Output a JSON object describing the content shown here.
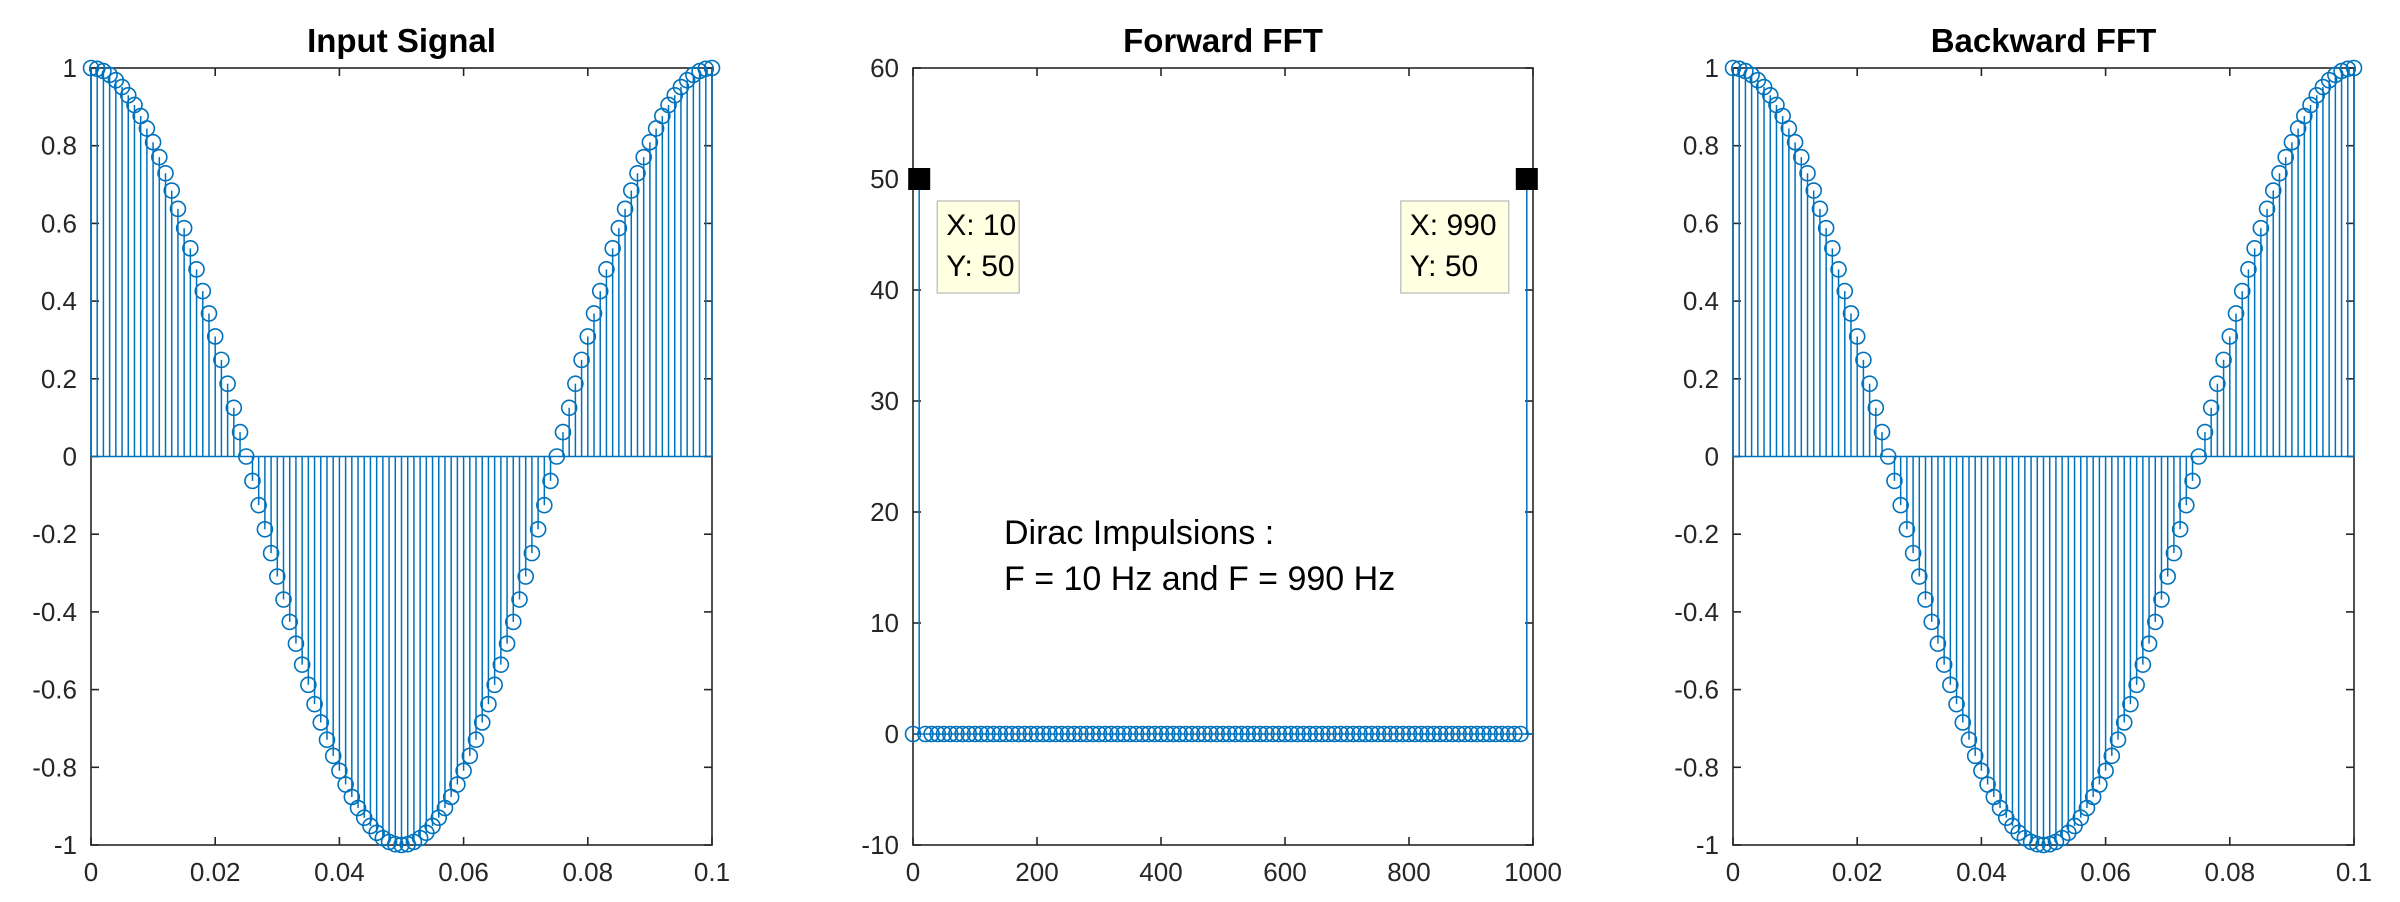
{
  "figure": {
    "annotation": {
      "line1": "Dirac Impulsions :",
      "line2": "F = 10 Hz and F = 990 Hz"
    }
  },
  "colors": {
    "series": "#0072BD",
    "axis": "#262626",
    "tip_background": "#FFFFE1",
    "tip_border": "#B7B7B7"
  },
  "chart_data": [
    {
      "type": "stem",
      "title": "Input Signal",
      "xlabel": "",
      "ylabel": "",
      "xlim": [
        0,
        0.1
      ],
      "ylim": [
        -1,
        1
      ],
      "xticks": [
        0,
        0.02,
        0.04,
        0.06,
        0.08,
        0.1
      ],
      "xtick_labels": [
        "0",
        "0.02",
        "0.04",
        "0.06",
        "0.08",
        "0.1"
      ],
      "yticks": [
        -1,
        -0.8,
        -0.6,
        -0.4,
        -0.2,
        0,
        0.2,
        0.4,
        0.6,
        0.8,
        1
      ],
      "ytick_labels": [
        "-1",
        "-0.8",
        "-0.6",
        "-0.4",
        "-0.2",
        "0",
        "0.2",
        "0.4",
        "0.6",
        "0.8",
        "1"
      ],
      "grid": false,
      "series": [
        {
          "function": "cos(2*pi*10*t)",
          "sample_rate_hz": 1000,
          "t_start": 0,
          "t_end": 0.1,
          "marker": "circle"
        }
      ]
    },
    {
      "type": "stem",
      "title": "Forward FFT",
      "xlabel": "",
      "ylabel": "",
      "xlim": [
        0,
        1000
      ],
      "ylim": [
        -10,
        60
      ],
      "xticks": [
        0,
        200,
        400,
        600,
        800,
        1000
      ],
      "xtick_labels": [
        "0",
        "200",
        "400",
        "600",
        "800",
        "1000"
      ],
      "yticks": [
        -10,
        0,
        10,
        20,
        30,
        40,
        50,
        60
      ],
      "ytick_labels": [
        "-10",
        "0",
        "10",
        "20",
        "30",
        "40",
        "50",
        "60"
      ],
      "grid": false,
      "series": [
        {
          "f_start": 0,
          "f_end": 990,
          "f_step": 10,
          "peaks": [
            [
              10,
              50
            ],
            [
              990,
              50
            ]
          ],
          "baseline_value": 0,
          "marker": "circle"
        }
      ],
      "datatips": [
        {
          "x": 10,
          "y": 50,
          "x_text": "X: 10",
          "y_text": "Y: 50"
        },
        {
          "x": 990,
          "y": 50,
          "x_text": "X: 990",
          "y_text": "Y: 50"
        }
      ]
    },
    {
      "type": "stem",
      "title": "Backward FFT",
      "xlabel": "",
      "ylabel": "",
      "xlim": [
        0,
        0.1
      ],
      "ylim": [
        -1,
        1
      ],
      "xticks": [
        0,
        0.02,
        0.04,
        0.06,
        0.08,
        0.1
      ],
      "xtick_labels": [
        "0",
        "0.02",
        "0.04",
        "0.06",
        "0.08",
        "0.1"
      ],
      "yticks": [
        -1,
        -0.8,
        -0.6,
        -0.4,
        -0.2,
        0,
        0.2,
        0.4,
        0.6,
        0.8,
        1
      ],
      "ytick_labels": [
        "-1",
        "-0.8",
        "-0.6",
        "-0.4",
        "-0.2",
        "0",
        "0.2",
        "0.4",
        "0.6",
        "0.8",
        "1"
      ],
      "grid": false,
      "series": [
        {
          "function": "cos(2*pi*10*t)",
          "sample_rate_hz": 1000,
          "t_start": 0,
          "t_end": 0.1,
          "marker": "circle"
        }
      ]
    }
  ]
}
